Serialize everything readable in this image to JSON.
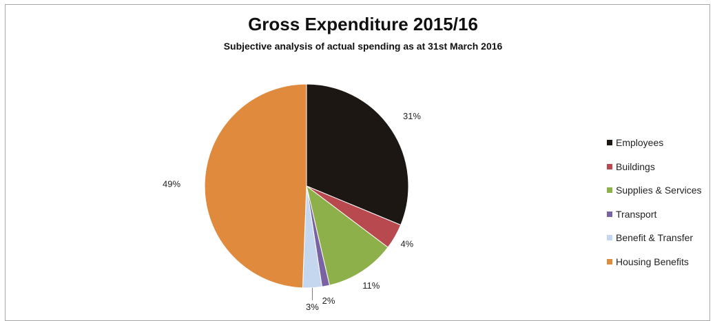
{
  "chart_data": {
    "type": "pie",
    "title": "Gross Expenditure 2015/16",
    "subtitle": "Subjective analysis of actual spending as at 31st March 2016",
    "slices": [
      {
        "label": "Employees",
        "value": 31,
        "display": "31%",
        "color": "#1c1712"
      },
      {
        "label": "Buildings",
        "value": 4,
        "display": "4%",
        "color": "#b84a4f"
      },
      {
        "label": "Supplies & Services",
        "value": 11,
        "display": "11%",
        "color": "#8db04a"
      },
      {
        "label": "Transport",
        "value": 1.2,
        "display": "",
        "color": "#7a62a3"
      },
      {
        "label": "Benefit & Transfer",
        "value": 3,
        "display": "3%",
        "color": "#c5d7ee"
      },
      {
        "label": "Housing Benefits",
        "value": 49,
        "display": "49%",
        "color": "#e08a3e"
      }
    ],
    "extra_labels": [
      "2%"
    ],
    "legend_position": "right"
  }
}
